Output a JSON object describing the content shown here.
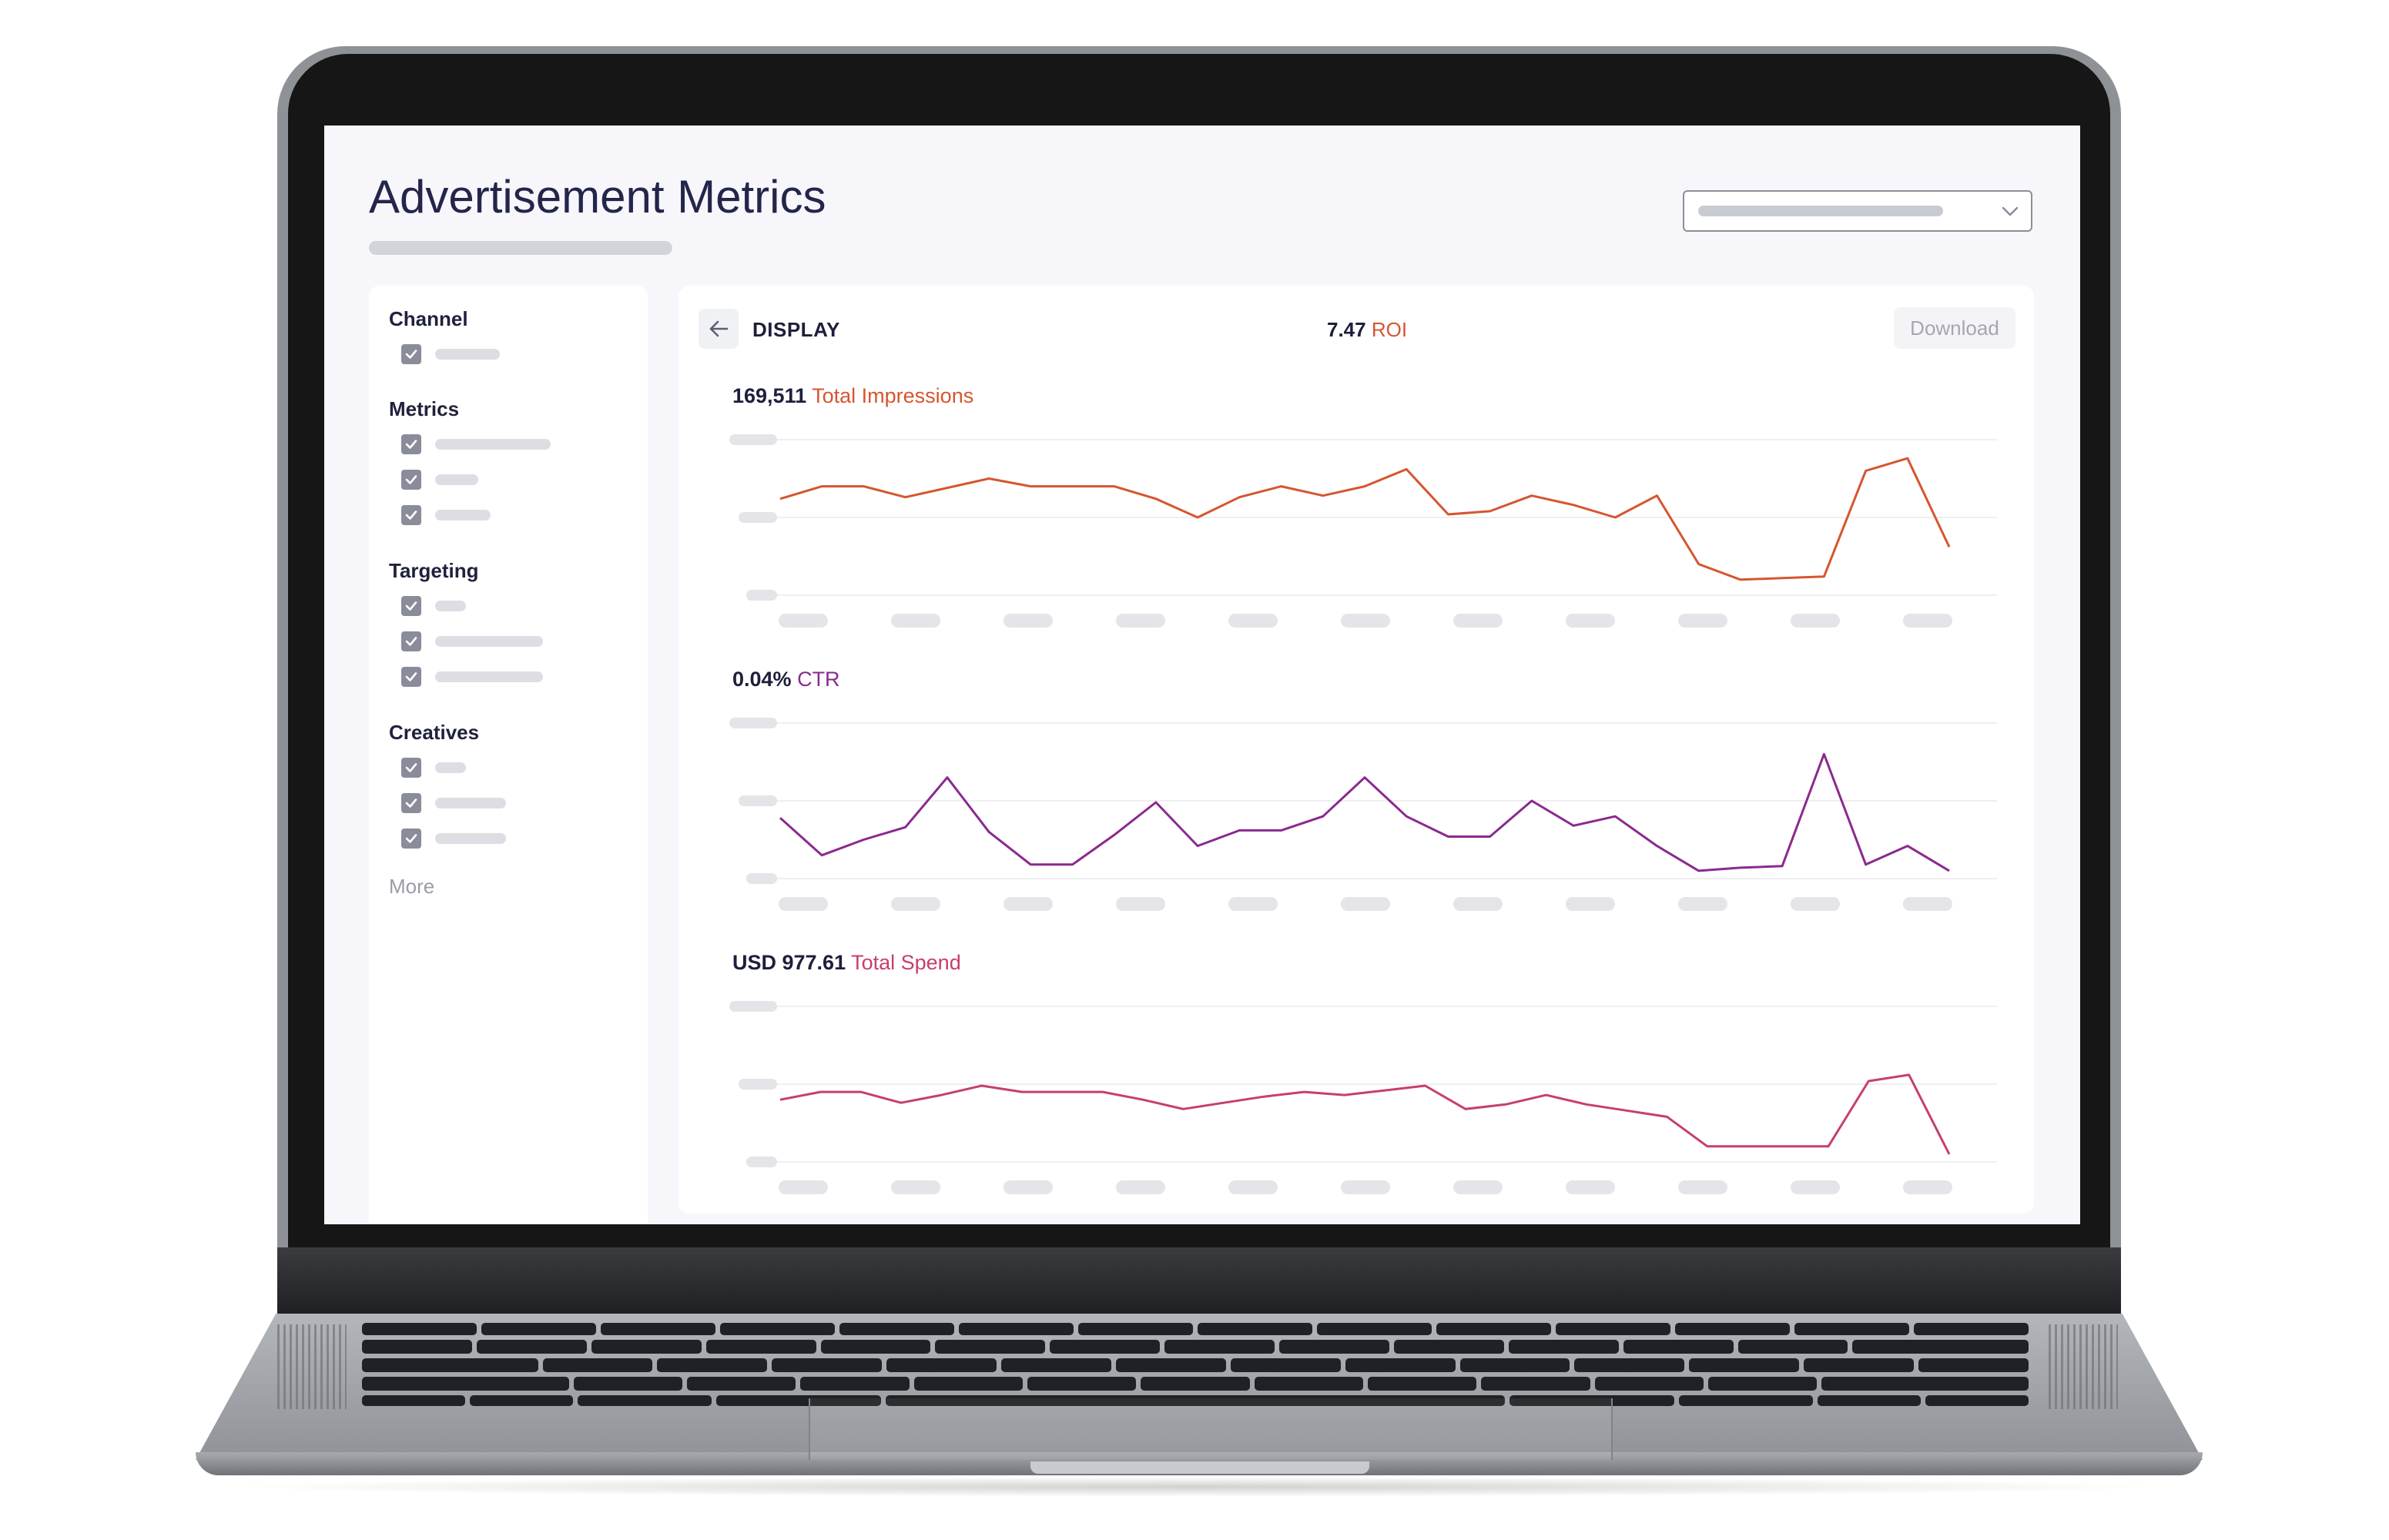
{
  "page": {
    "title": "Advertisement Metrics"
  },
  "sidebar": {
    "groups": [
      {
        "title": "Channel",
        "items": [
          {
            "checked": true
          }
        ]
      },
      {
        "title": "Metrics",
        "items": [
          {
            "checked": true
          },
          {
            "checked": true
          },
          {
            "checked": true
          }
        ]
      },
      {
        "title": "Targeting",
        "items": [
          {
            "checked": true
          },
          {
            "checked": true
          },
          {
            "checked": true
          }
        ]
      },
      {
        "title": "Creatives",
        "items": [
          {
            "checked": true
          },
          {
            "checked": true
          },
          {
            "checked": true
          }
        ]
      }
    ],
    "more_label": "More"
  },
  "panel": {
    "channel": "DISPLAY",
    "roi_value": "7.47",
    "roi_label": "ROI",
    "download_label": "Download",
    "icons": {
      "back": "arrow-left-icon",
      "select": "chevron-down-icon",
      "checkbox": "check-icon"
    }
  },
  "charts": [
    {
      "type": "line",
      "value": "169,511",
      "label": "Total Impressions",
      "color": "#d5562f",
      "points": [
        0.62,
        0.7,
        0.7,
        0.63,
        0.69,
        0.75,
        0.7,
        0.7,
        0.7,
        0.62,
        0.5,
        0.63,
        0.7,
        0.64,
        0.7,
        0.81,
        0.52,
        0.54,
        0.64,
        0.58,
        0.5,
        0.64,
        0.2,
        0.1,
        0.11,
        0.12,
        0.8,
        0.88,
        0.31
      ]
    },
    {
      "type": "line",
      "value": "0.04%",
      "label": "CTR",
      "color": "#8a2a8e",
      "points": [
        0.39,
        0.15,
        0.25,
        0.33,
        0.65,
        0.3,
        0.09,
        0.09,
        0.28,
        0.49,
        0.21,
        0.31,
        0.31,
        0.4,
        0.65,
        0.4,
        0.27,
        0.27,
        0.5,
        0.34,
        0.4,
        0.21,
        0.05,
        0.07,
        0.08,
        0.8,
        0.09,
        0.21,
        0.05
      ]
    },
    {
      "type": "line",
      "value": "USD 977.61",
      "label": "Total Spend",
      "color": "#c73e70",
      "points": [
        0.4,
        0.45,
        0.45,
        0.38,
        0.43,
        0.49,
        0.45,
        0.45,
        0.45,
        0.4,
        0.34,
        0.38,
        0.42,
        0.45,
        0.43,
        0.46,
        0.49,
        0.34,
        0.37,
        0.43,
        0.37,
        0.33,
        0.29,
        0.1,
        0.1,
        0.1,
        0.1,
        0.52,
        0.56,
        0.05
      ]
    }
  ]
}
